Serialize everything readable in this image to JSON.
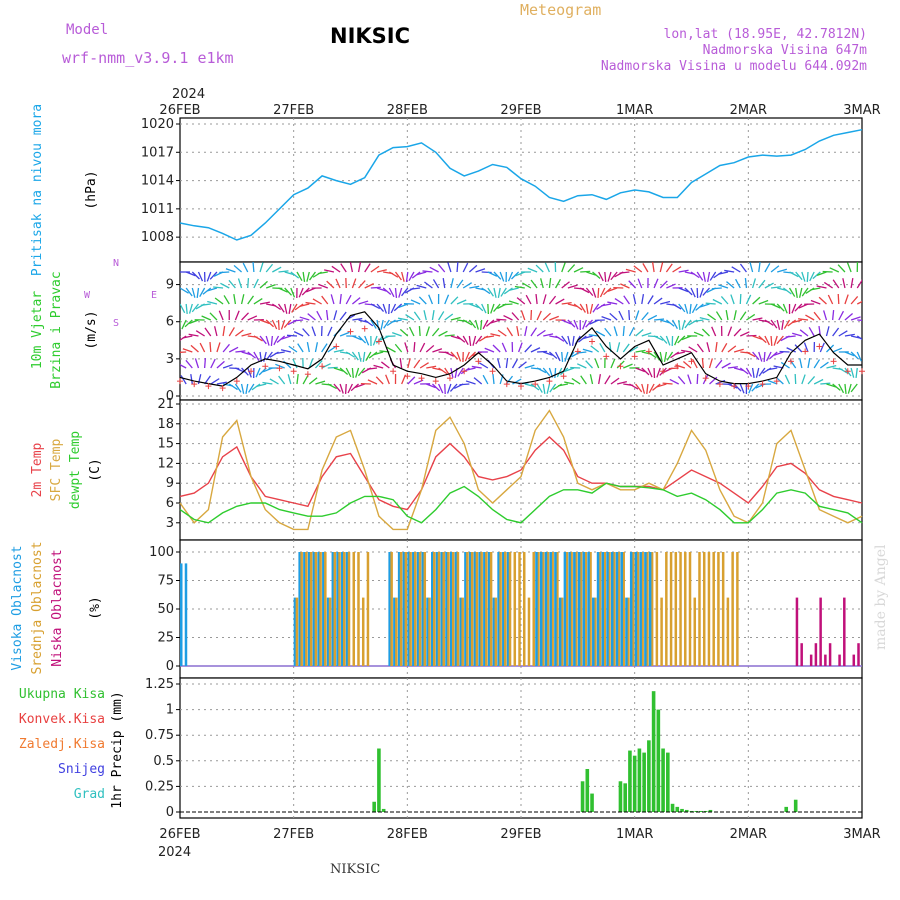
{
  "header": {
    "model_label": "Model",
    "model_name": "wrf-nmm_v3.9.1  e1km",
    "station": "NIKSIC",
    "product": "Meteogram",
    "coords": "lon,lat (18.95E, 42.7812N)",
    "elevation": "Nadmorska Visina 647m",
    "model_elevation": "Nadmorska Visina u modelu 644.092m",
    "footer_station": "NIKSIC",
    "credit": "made by Angel",
    "year_top": "2024",
    "year_bottom": "2024",
    "dates": [
      "26FEB",
      "27FEB",
      "28FEB",
      "29FEB",
      "1MAR",
      "2MAR",
      "3MAR"
    ]
  },
  "labels": {
    "pressure": [
      "Pritisak na nivou mora",
      "(hPa)"
    ],
    "wind": [
      "10m Vjetar",
      "Brzina i Pravac",
      "(m/s)"
    ],
    "compass": {
      "n": "N",
      "w": "W",
      "e": "E",
      "s": "S"
    },
    "temp": [
      "2m Temp",
      "SFC Temp",
      "dewpt Temp",
      "(C)"
    ],
    "cloud": [
      "Visoka Oblacnost",
      "Srednja Oblacnost",
      "Niska Oblacnost",
      "(%)"
    ],
    "precip_legend": [
      "Ukupna Kisa",
      "Konvek.Kisa",
      "Zaledj.Kisa",
      "Snijeg",
      "Grad"
    ],
    "precip_unit": "1hr Precip (mm)"
  },
  "colors": {
    "pressure": "#1aa6e8",
    "temp2m": "#e8424a",
    "sfc": "#d8a840",
    "dewpt": "#2ecc2e",
    "high_cloud": "#1e9de3",
    "mid_cloud": "#d8a030",
    "low_cloud": "#c0107a",
    "precip_total": "#30c030",
    "precip_conv": "#e84040",
    "precip_freezing": "#f07a30",
    "snow": "#4040e0",
    "hail": "#30c0c0",
    "model_text": "#b85cd8",
    "header_meteogram": "#e0b060"
  },
  "chart_data": [
    {
      "type": "line",
      "name": "pressure",
      "ylabel": "(hPa)",
      "ylim": [
        1006,
        1020
      ],
      "yticks": [
        1008,
        1011,
        1014,
        1017,
        1020
      ],
      "x": [
        0,
        3,
        6,
        9,
        12,
        15,
        18,
        21,
        24,
        27,
        30,
        33,
        36,
        39,
        42,
        45,
        48,
        51,
        54,
        57,
        60,
        63,
        66,
        69,
        72,
        75,
        78,
        81,
        84,
        87,
        90,
        93,
        96,
        99,
        102,
        105,
        108,
        111,
        114,
        117,
        120,
        123,
        126,
        129,
        132,
        135,
        138,
        141,
        144
      ],
      "values": [
        1009.5,
        1009.2,
        1009.0,
        1008.4,
        1007.7,
        1008.2,
        1009.5,
        1011.0,
        1012.5,
        1013.2,
        1014.5,
        1014.0,
        1013.6,
        1014.3,
        1016.7,
        1017.5,
        1017.6,
        1018.0,
        1017.0,
        1015.3,
        1014.5,
        1015.0,
        1015.7,
        1015.4,
        1014.2,
        1013.4,
        1012.2,
        1011.8,
        1012.4,
        1012.5,
        1012.0,
        1012.7,
        1013.0,
        1012.8,
        1012.2,
        1012.2,
        1013.8,
        1014.7,
        1015.6,
        1015.9,
        1016.5,
        1016.7,
        1016.6,
        1016.7,
        1017.3,
        1018.2,
        1018.8,
        1019.1,
        1019.4
      ]
    },
    {
      "type": "line",
      "name": "wind",
      "ylabel": "(m/s)",
      "ylim": [
        0,
        10.5
      ],
      "yticks": [
        0,
        3,
        6,
        9
      ],
      "x": [
        0,
        3,
        6,
        9,
        12,
        15,
        18,
        21,
        24,
        27,
        30,
        33,
        36,
        39,
        42,
        45,
        48,
        51,
        54,
        57,
        60,
        63,
        66,
        69,
        72,
        75,
        78,
        81,
        84,
        87,
        90,
        93,
        96,
        99,
        102,
        105,
        108,
        111,
        114,
        117,
        120,
        123,
        126,
        129,
        132,
        135,
        138,
        141,
        144
      ],
      "values": [
        1.5,
        1.2,
        1.0,
        0.8,
        1.5,
        2.5,
        3.0,
        2.8,
        2.5,
        2.2,
        3.0,
        5.0,
        6.5,
        6.8,
        5.5,
        2.5,
        2.0,
        1.8,
        1.5,
        1.8,
        2.5,
        3.5,
        2.5,
        1.2,
        1.0,
        1.2,
        1.5,
        2.0,
        4.5,
        5.5,
        4.0,
        3.0,
        4.0,
        4.5,
        2.5,
        3.0,
        3.5,
        1.8,
        1.2,
        1.0,
        1.0,
        1.2,
        1.5,
        3.5,
        4.5,
        5.0,
        3.5,
        2.5,
        2.5
      ]
    },
    {
      "type": "line",
      "name": "temperature",
      "ylabel": "(C)",
      "ylim": [
        1,
        21
      ],
      "yticks": [
        3,
        6,
        9,
        12,
        15,
        18,
        21
      ],
      "x": [
        0,
        3,
        6,
        9,
        12,
        15,
        18,
        21,
        24,
        27,
        30,
        33,
        36,
        39,
        42,
        45,
        48,
        51,
        54,
        57,
        60,
        63,
        66,
        69,
        72,
        75,
        78,
        81,
        84,
        87,
        90,
        93,
        96,
        99,
        102,
        105,
        108,
        111,
        114,
        117,
        120,
        123,
        126,
        129,
        132,
        135,
        138,
        141,
        144
      ],
      "series": [
        {
          "name": "2m Temp",
          "values": [
            7,
            7.5,
            9,
            13,
            14.5,
            10,
            7,
            6.5,
            6,
            5.5,
            10,
            13,
            13.5,
            10,
            6.5,
            5.5,
            5,
            8,
            13,
            15,
            13,
            10,
            9.5,
            10,
            11,
            14,
            16,
            14,
            10,
            9,
            9,
            8.5,
            8.5,
            8.5,
            8,
            9.5,
            11,
            10,
            9,
            7.5,
            6,
            8.5,
            11.5,
            12,
            10.5,
            8,
            7,
            6.5,
            6
          ]
        },
        {
          "name": "SFC Temp",
          "values": [
            6,
            3,
            5,
            16,
            18.5,
            10,
            5,
            3,
            2,
            2,
            11,
            16,
            17,
            11,
            4,
            2,
            2,
            8,
            17,
            19,
            15,
            8,
            6,
            8,
            10,
            17,
            20,
            16,
            9,
            8,
            9,
            8,
            8,
            9,
            8,
            12,
            17,
            14,
            8,
            4,
            3,
            6,
            15,
            17,
            11,
            5,
            4,
            3,
            4
          ]
        },
        {
          "name": "dewpt Temp",
          "values": [
            5,
            3.5,
            3,
            4.5,
            5.5,
            6,
            6,
            5,
            4.5,
            4,
            4,
            4.5,
            6,
            7,
            7,
            6.5,
            4,
            3,
            5,
            7.5,
            8.5,
            7,
            5,
            3.5,
            3,
            5,
            7,
            8,
            8,
            7.5,
            9,
            8.5,
            8.5,
            8.3,
            8,
            7,
            7.5,
            6.5,
            5,
            3,
            3,
            5,
            7.5,
            8,
            7.5,
            5.5,
            5,
            4.5,
            3
          ]
        }
      ]
    },
    {
      "type": "bar",
      "name": "cloud cover",
      "ylabel": "(%)",
      "ylim": [
        0,
        100
      ],
      "yticks": [
        0,
        25,
        50,
        75,
        100
      ],
      "note": "Bars shown approximately at hourly steps; 100% blocks for mid and high cloud",
      "blocks": [
        {
          "series": "Visoka Oblacnost",
          "from": 0,
          "to": 2,
          "value": 90
        },
        {
          "series": "Visoka Oblacnost",
          "from": 24,
          "to": 36,
          "value": 100
        },
        {
          "series": "Srednja Oblacnost",
          "from": 24,
          "to": 40,
          "value": 100
        },
        {
          "series": "Visoka Oblacnost",
          "from": 44,
          "to": 70,
          "value": 100
        },
        {
          "series": "Srednja Oblacnost",
          "from": 44,
          "to": 118,
          "value": 100
        },
        {
          "series": "Visoka Oblacnost",
          "from": 75,
          "to": 100,
          "value": 100
        },
        {
          "series": "Niska Oblacnost",
          "from": 130,
          "to": 144,
          "value": 30
        }
      ]
    },
    {
      "type": "bar",
      "name": "precipitation",
      "ylabel": "1hr Precip (mm)",
      "ylim": [
        0,
        1.25
      ],
      "yticks": [
        0,
        0.25,
        0.5,
        0.75,
        1,
        1.25
      ],
      "x": [
        41,
        42,
        43,
        85,
        86,
        87,
        93,
        94,
        95,
        96,
        97,
        98,
        99,
        100,
        101,
        102,
        103,
        104,
        105,
        106,
        107,
        108,
        109,
        110,
        111,
        112,
        128,
        130
      ],
      "values": [
        0.1,
        0.62,
        0.03,
        0.3,
        0.42,
        0.18,
        0.3,
        0.28,
        0.6,
        0.55,
        0.62,
        0.58,
        0.7,
        1.18,
        1.0,
        0.62,
        0.58,
        0.08,
        0.05,
        0.03,
        0.02,
        0.01,
        0.01,
        0.01,
        0.01,
        0.02,
        0.05,
        0.12
      ]
    }
  ]
}
